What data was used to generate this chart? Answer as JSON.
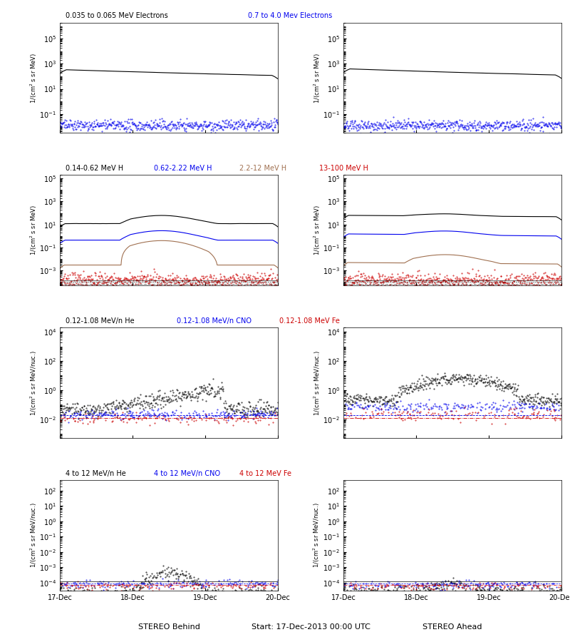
{
  "title_center": "Start: 17-Dec-2013 00:00 UTC",
  "xlabel_left": "STEREO Behind",
  "xlabel_right": "STEREO Ahead",
  "xtick_labels": [
    "17-Dec",
    "18-Dec",
    "19-Dec",
    "20-Dec"
  ],
  "row0_title_black": "0.035 to 0.065 MeV Electrons",
  "row0_title_blue": "0.7 to 4.0 Mev Electrons",
  "row1_title_black": "0.14-0.62 MeV H",
  "row1_title_blue": "0.62-2.22 MeV H",
  "row1_title_brown": "2.2-12 MeV H",
  "row1_title_red": "13-100 MeV H",
  "row2_title_black": "0.12-1.08 MeV/n He",
  "row2_title_blue": "0.12-1.08 MeV/n CNO",
  "row2_title_red": "0.12-1.08 MeV Fe",
  "row3_title_black": "4 to 12 MeV/n He",
  "row3_title_blue": "4 to 12 MeV/n CNO",
  "row3_title_red": "4 to 12 MeV Fe",
  "colors": {
    "black": "#000000",
    "blue": "#0000ee",
    "brown": "#a07050",
    "red": "#cc0000"
  },
  "bg_color": "#ffffff",
  "seed": 42
}
